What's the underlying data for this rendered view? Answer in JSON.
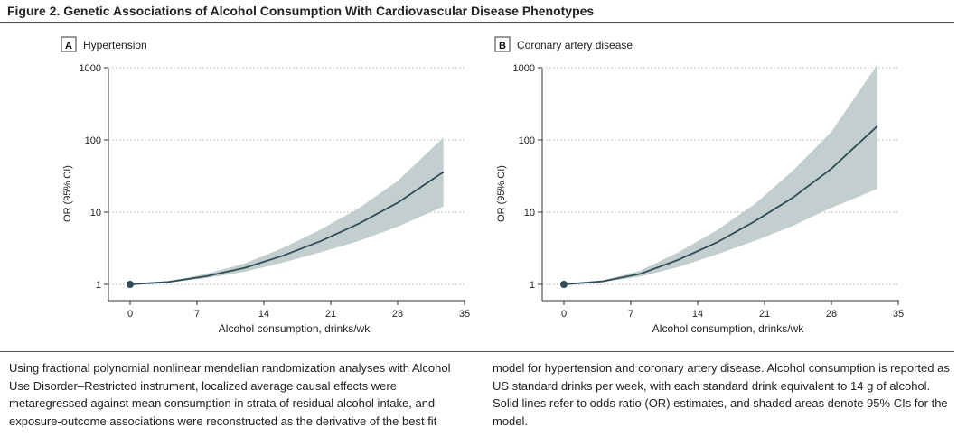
{
  "figure": {
    "title": "Figure 2. Genetic Associations of Alcohol Consumption With Cardiovascular Disease Phenotypes"
  },
  "colors": {
    "line": "#2e4d57",
    "band": "#c3cfcf",
    "grid": "#b0b0b0",
    "axis": "#333333"
  },
  "chart_data": [
    {
      "type": "line",
      "panel_letter": "A",
      "title": "Hypertension",
      "xlabel": "Alcohol consumption, drinks/wk",
      "ylabel": "OR (95% CI)",
      "yscale": "log",
      "xlim": [
        -3,
        35
      ],
      "ylim": [
        0.55,
        1000
      ],
      "xticks": [
        0,
        7,
        14,
        21,
        28,
        35
      ],
      "xtick_labels": [
        "0",
        "7",
        "14",
        "21",
        "28",
        "35"
      ],
      "yticks": [
        1,
        10,
        100,
        1000
      ],
      "ytick_labels": [
        "1",
        "10",
        "100",
        "1000"
      ],
      "grid": true,
      "series": [
        {
          "name": "OR estimate",
          "x": [
            0,
            4,
            8,
            12,
            16,
            20,
            24,
            28,
            32.8
          ],
          "y": [
            1.0,
            1.08,
            1.3,
            1.7,
            2.5,
            4.0,
            7.0,
            13.5,
            36
          ]
        },
        {
          "name": "95% CI",
          "x": [
            0,
            4,
            8,
            12,
            16,
            20,
            24,
            28,
            32.8
          ],
          "lower": [
            1.0,
            1.06,
            1.22,
            1.5,
            2.0,
            2.8,
            4.0,
            6.3,
            12
          ],
          "upper": [
            1.0,
            1.1,
            1.4,
            1.95,
            3.2,
            5.8,
            11.5,
            27,
            108
          ]
        }
      ],
      "markers": [
        {
          "x": 0,
          "y": 1
        }
      ]
    },
    {
      "type": "line",
      "panel_letter": "B",
      "title": "Coronary artery disease",
      "xlabel": "Alcohol consumption, drinks/wk",
      "ylabel": "OR (95% CI)",
      "yscale": "log",
      "xlim": [
        -3,
        35
      ],
      "ylim": [
        0.55,
        1000
      ],
      "xticks": [
        0,
        7,
        14,
        21,
        28,
        35
      ],
      "xtick_labels": [
        "0",
        "7",
        "14",
        "21",
        "28",
        "35"
      ],
      "yticks": [
        1,
        10,
        100,
        1000
      ],
      "ytick_labels": [
        "1",
        "10",
        "100",
        "1000"
      ],
      "grid": true,
      "series": [
        {
          "name": "OR estimate",
          "x": [
            0,
            4,
            8,
            12,
            16,
            20,
            24,
            28,
            32.8
          ],
          "y": [
            1.0,
            1.1,
            1.4,
            2.2,
            3.8,
            7.5,
            16,
            40,
            155
          ]
        },
        {
          "name": "95% CI",
          "x": [
            0,
            4,
            8,
            12,
            16,
            20,
            24,
            28,
            32.8
          ],
          "lower": [
            1.0,
            1.07,
            1.28,
            1.75,
            2.6,
            4.0,
            6.5,
            11.5,
            21
          ],
          "upper": [
            1.0,
            1.13,
            1.55,
            2.8,
            5.6,
            13,
            38,
            130,
            1100
          ]
        }
      ],
      "markers": [
        {
          "x": 0,
          "y": 1
        }
      ]
    }
  ],
  "caption": {
    "left": "Using fractional polynomial nonlinear mendelian randomization analyses with Alcohol Use Disorder–Restricted instrument, localized average causal effects were metaregressed against mean consumption in strata of residual alcohol intake, and exposure-outcome associations were reconstructed as the derivative of the best fit",
    "right": "model for hypertension and coronary artery disease. Alcohol consumption is reported as US standard drinks per week, with each standard drink equivalent to 14 g of alcohol. Solid lines refer to odds ratio (OR) estimates, and shaded areas denote 95% CIs for the model."
  }
}
